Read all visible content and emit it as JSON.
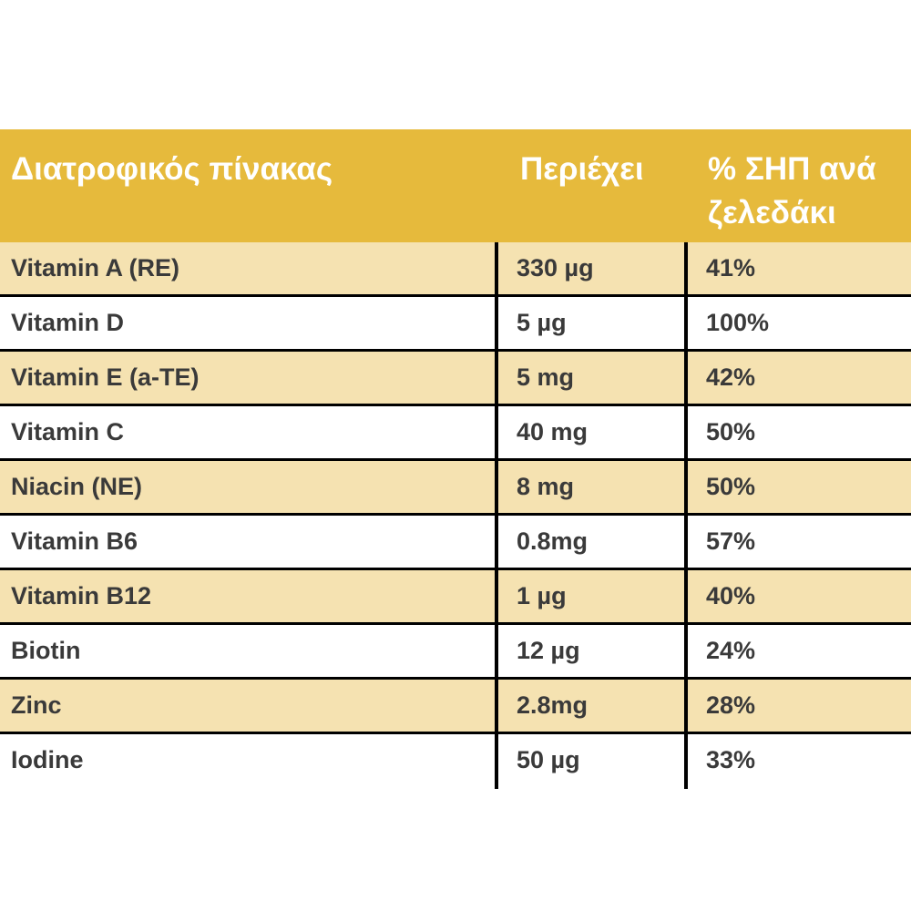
{
  "table": {
    "header": {
      "name": "Διατροφικός πίνακας",
      "contains": "Περιέχει",
      "rdi_line1": "% ΣΗΠ ανά",
      "rdi_line2": "ζελεδάκι"
    },
    "rows": [
      {
        "name": "Vitamin A (RE)",
        "contains": "330 µg",
        "rdi": "41%"
      },
      {
        "name": "Vitamin D",
        "contains": "5 µg",
        "rdi": "100%"
      },
      {
        "name": "Vitamin E (a-TE)",
        "contains": "5 mg",
        "rdi": "42%"
      },
      {
        "name": "Vitamin C",
        "contains": "40 mg",
        "rdi": "50%"
      },
      {
        "name": "Niacin (NE)",
        "contains": "8 mg",
        "rdi": "50%"
      },
      {
        "name": "Vitamin B6",
        "contains": "0.8mg",
        "rdi": "57%"
      },
      {
        "name": "Vitamin B12",
        "contains": "1 µg",
        "rdi": "40%"
      },
      {
        "name": "Biotin",
        "contains": "12 µg",
        "rdi": "24%"
      },
      {
        "name": "Zinc",
        "contains": "2.8mg",
        "rdi": "28%"
      },
      {
        "name": "Iodine",
        "contains": "50 µg",
        "rdi": "33%"
      }
    ]
  },
  "colors": {
    "header_bg": "#e6ba3c",
    "header_text": "#ffffff",
    "row_shaded": "#f5e2b1",
    "row_plain": "#ffffff",
    "border": "#000000",
    "cell_text": "#3a3a3a"
  }
}
